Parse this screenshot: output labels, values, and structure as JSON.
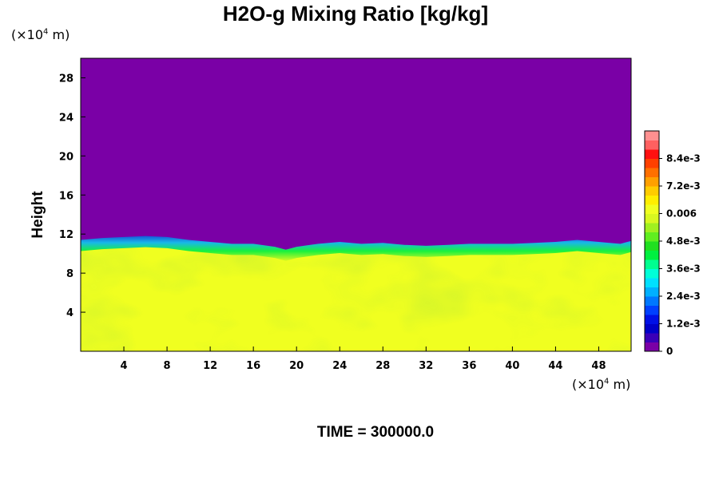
{
  "chart_data": {
    "type": "heatmap",
    "title": "H2O-g Mixing Ratio [kg/kg]",
    "ylabel": "Height",
    "x_unit": {
      "prefix": "(×10",
      "exp": "4",
      "suffix": " m)"
    },
    "y_unit": {
      "prefix": "(×10",
      "exp": "4",
      "suffix": " m)"
    },
    "xlim": [
      0,
      51
    ],
    "ylim": [
      0,
      30
    ],
    "x_ticks": [
      4,
      8,
      12,
      16,
      20,
      24,
      28,
      32,
      36,
      40,
      44,
      48
    ],
    "x_tick_labels": [
      "4",
      "8",
      "12",
      "16",
      "20",
      "24",
      "28",
      "32",
      "36",
      "40",
      "44",
      "48"
    ],
    "y_ticks": [
      4,
      8,
      12,
      16,
      20,
      24,
      28
    ],
    "y_tick_labels": [
      "4",
      "8",
      "12",
      "16",
      "20",
      "24",
      "28"
    ],
    "boundary_x": [
      0,
      2,
      4,
      6,
      8,
      10,
      12,
      14,
      16,
      18,
      19,
      20,
      22,
      24,
      26,
      28,
      30,
      32,
      34,
      36,
      38,
      40,
      42,
      44,
      46,
      48,
      50,
      51
    ],
    "boundary_height": [
      11.4,
      11.6,
      11.7,
      11.8,
      11.7,
      11.4,
      11.2,
      11.0,
      11.0,
      10.7,
      10.4,
      10.7,
      11.0,
      11.2,
      11.0,
      11.1,
      10.9,
      10.8,
      10.9,
      11.0,
      11.0,
      11.0,
      11.1,
      11.2,
      11.4,
      11.2,
      11.0,
      11.3
    ],
    "upper_value": 0,
    "lower_value": 0.0062,
    "colorbar": {
      "vmin": 0,
      "vmax": 0.0096,
      "tick_values": [
        0,
        0.0012,
        0.0024,
        0.0036,
        0.0048,
        0.006,
        0.0072,
        0.0084
      ],
      "tick_labels": [
        "0",
        "1.2e-3",
        "2.4e-3",
        "3.6e-3",
        "4.8e-3",
        "0.006",
        "7.2e-3",
        "8.4e-3"
      ],
      "colors": [
        "#7a00a6",
        "#3a00b8",
        "#0000c8",
        "#0010e6",
        "#0040ff",
        "#0078ff",
        "#00b0ff",
        "#00e0ff",
        "#00ffd8",
        "#00ff90",
        "#00f040",
        "#20e020",
        "#60ee20",
        "#a0f020",
        "#d8f820",
        "#f0ff20",
        "#ffee00",
        "#ffcc00",
        "#ffa000",
        "#ff7000",
        "#ff4000",
        "#ff1010",
        "#ff6060",
        "#ff9090"
      ]
    }
  },
  "footer": {
    "time_label": "TIME = 300000.0"
  }
}
